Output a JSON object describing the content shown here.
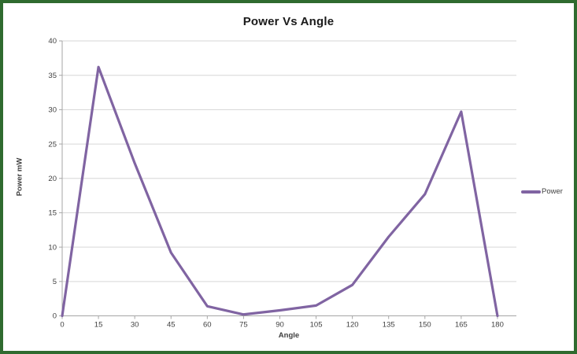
{
  "chart_data": {
    "type": "line",
    "title": "Power Vs Angle",
    "xlabel": "Angle",
    "ylabel": "Power mW",
    "categories": [
      0,
      15,
      30,
      45,
      60,
      75,
      90,
      105,
      120,
      135,
      150,
      165,
      180
    ],
    "series": [
      {
        "name": "Power",
        "color": "#8064A2",
        "values": [
          0,
          36.2,
          22.2,
          9.2,
          1.4,
          0.2,
          0.8,
          1.5,
          4.5,
          11.5,
          17.7,
          29.7,
          0
        ]
      }
    ],
    "ylim": [
      0,
      40
    ],
    "ytick_step": 5,
    "grid": "horizontal",
    "legend_position": "right"
  },
  "colors": {
    "gridline": "#D6D6D6",
    "axis": "#A6A6A6",
    "tick_label": "#3F3F3F",
    "title": "#1A1A1A",
    "frame_border": "#2F6B2F",
    "background": "#FFFFFF"
  }
}
